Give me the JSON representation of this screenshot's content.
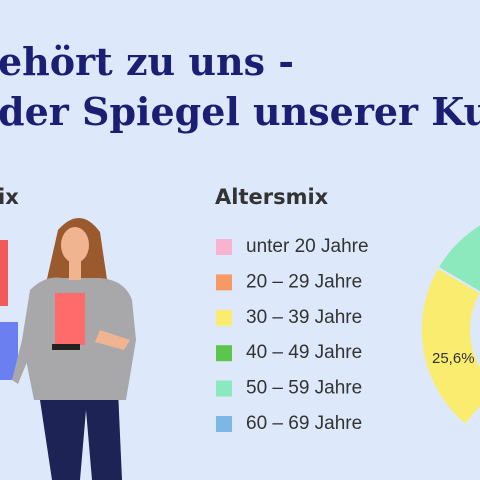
{
  "header": {
    "title_lines": [
      "ehört zu uns -",
      "der Spiegel unserer Ku"
    ]
  },
  "left_section": {
    "title": "ix"
  },
  "legend": {
    "title": "Altersmix",
    "items": [
      {
        "label": "unter 20 Jahre",
        "color": "#f7b3cf"
      },
      {
        "label": "20 – 29 Jahre",
        "color": "#f59a62"
      },
      {
        "label": "30 – 39 Jahre",
        "color": "#f9ec6e"
      },
      {
        "label": "40 – 49 Jahre",
        "color": "#5cc54e"
      },
      {
        "label": "50 – 59 Jahre",
        "color": "#8ce8bd"
      },
      {
        "label": "60 – 69 Jahre",
        "color": "#7eb6e6"
      }
    ]
  },
  "donut": {
    "label": "25,6%"
  }
}
